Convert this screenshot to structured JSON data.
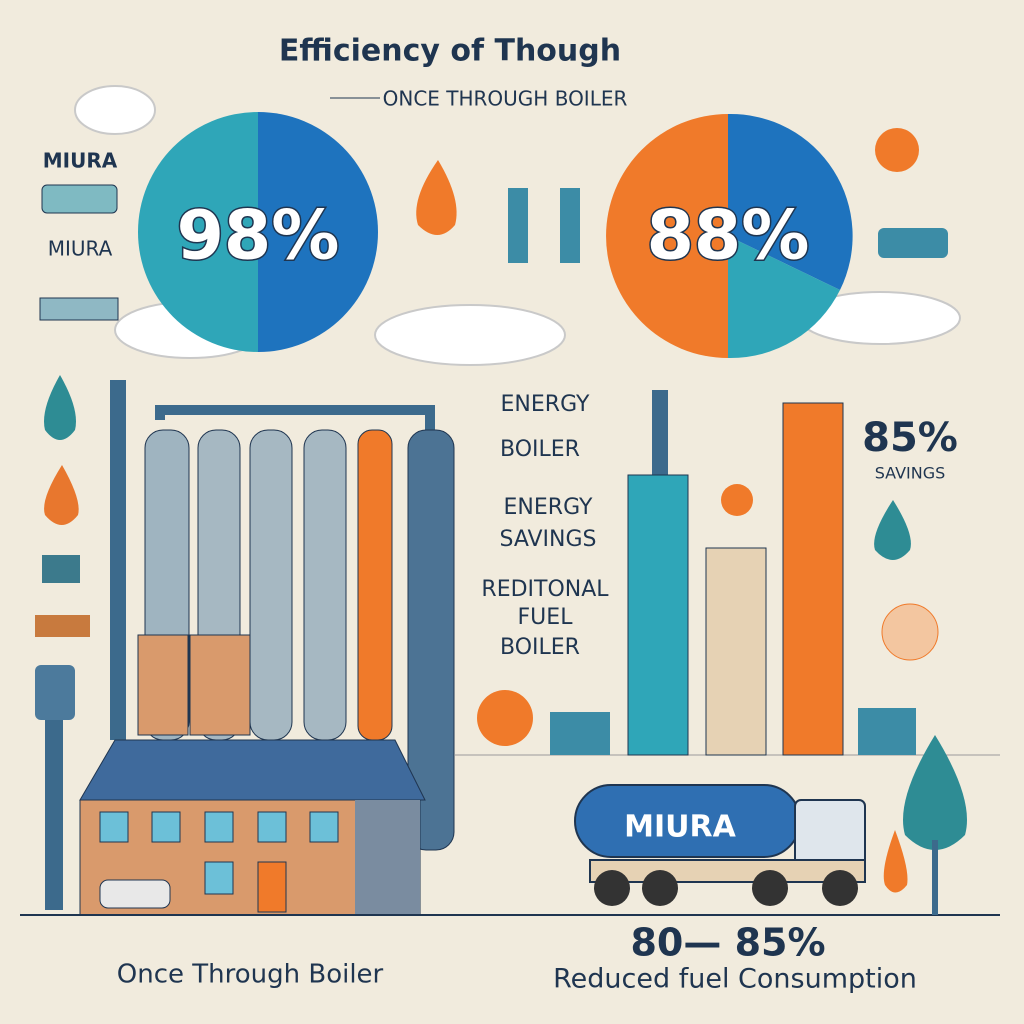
{
  "header": {
    "title": "Efficiency of Though",
    "subtitle": "ONCE THROUGH BOILER"
  },
  "sidebar": {
    "labels": [
      "MIURA",
      "MIURA"
    ]
  },
  "pies": [
    {
      "label": "98%"
    },
    {
      "label": "88%"
    }
  ],
  "middle": {
    "lines": [
      "ENERGY",
      "BOILER",
      "ENERGY",
      "SAVINGS",
      "REDITONAL",
      "FUEL",
      "BOILER"
    ]
  },
  "savings": {
    "value": "85%",
    "label": "SAVINGS"
  },
  "truck": {
    "label": "MIURA"
  },
  "footer": {
    "left": "Once Through Boiler",
    "right_value": "80— 85%",
    "right_caption": "Reduced fuel Consumption"
  }
}
